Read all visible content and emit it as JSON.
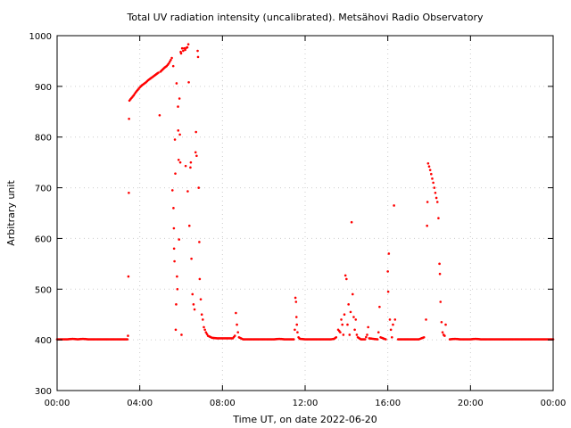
{
  "chart_data": {
    "type": "scatter",
    "title": "Total UV radiation intensity (uncalibrated). Metsähovi Radio Observatory",
    "xlabel": "Time UT, on date 2022-06-20",
    "ylabel": "Arbitrary unit",
    "xlim": [
      0,
      24
    ],
    "ylim": [
      300,
      1000
    ],
    "x_ticks": [
      {
        "value": 0,
        "label": "00:00"
      },
      {
        "value": 4,
        "label": "04:00"
      },
      {
        "value": 8,
        "label": "08:00"
      },
      {
        "value": 12,
        "label": "12:00"
      },
      {
        "value": 16,
        "label": "16:00"
      },
      {
        "value": 20,
        "label": "20:00"
      },
      {
        "value": 24,
        "label": "00:00"
      }
    ],
    "y_ticks": [
      300,
      400,
      500,
      600,
      700,
      800,
      900,
      1000
    ],
    "grid": true,
    "legend": "none",
    "color": "#ff0000",
    "series": [
      {
        "points": [
          [
            0.0,
            401
          ],
          [
            0.25,
            401
          ],
          [
            0.5,
            401
          ],
          [
            0.75,
            402
          ],
          [
            1.0,
            401
          ],
          [
            1.25,
            402
          ],
          [
            1.5,
            401
          ],
          [
            1.75,
            401
          ],
          [
            2.0,
            401
          ],
          [
            2.25,
            401
          ],
          [
            2.5,
            401
          ],
          [
            2.75,
            401
          ],
          [
            3.0,
            401
          ],
          [
            3.25,
            401
          ],
          [
            3.4,
            401
          ],
          [
            3.43,
            408
          ],
          [
            3.45,
            525
          ],
          [
            3.47,
            690
          ],
          [
            3.48,
            836
          ],
          [
            3.5,
            872
          ],
          [
            3.6,
            877
          ],
          [
            3.7,
            882
          ],
          [
            3.8,
            888
          ],
          [
            3.9,
            893
          ],
          [
            4.0,
            898
          ],
          [
            4.1,
            902
          ],
          [
            4.2,
            905
          ],
          [
            4.3,
            908
          ],
          [
            4.4,
            912
          ],
          [
            4.5,
            915
          ],
          [
            4.6,
            918
          ],
          [
            4.7,
            921
          ],
          [
            4.8,
            924
          ],
          [
            4.9,
            927
          ],
          [
            4.96,
            843
          ],
          [
            5.0,
            929
          ],
          [
            5.1,
            933
          ],
          [
            5.2,
            937
          ],
          [
            5.3,
            940
          ],
          [
            5.4,
            945
          ],
          [
            5.5,
            952
          ],
          [
            5.55,
            956
          ],
          [
            5.58,
            695
          ],
          [
            5.62,
            940
          ],
          [
            5.63,
            660
          ],
          [
            5.65,
            620
          ],
          [
            5.66,
            580
          ],
          [
            5.68,
            555
          ],
          [
            5.7,
            795
          ],
          [
            5.72,
            728
          ],
          [
            5.74,
            420
          ],
          [
            5.76,
            470
          ],
          [
            5.78,
            906
          ],
          [
            5.8,
            525
          ],
          [
            5.82,
            500
          ],
          [
            5.85,
            860
          ],
          [
            5.86,
            813
          ],
          [
            5.88,
            755
          ],
          [
            5.9,
            598
          ],
          [
            5.92,
            876
          ],
          [
            5.94,
            805
          ],
          [
            5.96,
            750
          ],
          [
            5.98,
            968
          ],
          [
            6.0,
            965
          ],
          [
            6.02,
            410
          ],
          [
            6.05,
            975
          ],
          [
            6.1,
            970
          ],
          [
            6.15,
            975
          ],
          [
            6.2,
            972
          ],
          [
            6.22,
            743
          ],
          [
            6.25,
            976
          ],
          [
            6.3,
            977
          ],
          [
            6.32,
            693
          ],
          [
            6.35,
            983
          ],
          [
            6.37,
            908
          ],
          [
            6.4,
            625
          ],
          [
            6.45,
            740
          ],
          [
            6.47,
            750
          ],
          [
            6.5,
            560
          ],
          [
            6.55,
            490
          ],
          [
            6.6,
            470
          ],
          [
            6.65,
            460
          ],
          [
            6.7,
            770
          ],
          [
            6.72,
            810
          ],
          [
            6.75,
            763
          ],
          [
            6.8,
            970
          ],
          [
            6.82,
            958
          ],
          [
            6.85,
            700
          ],
          [
            6.88,
            593
          ],
          [
            6.9,
            520
          ],
          [
            6.95,
            480
          ],
          [
            7.0,
            450
          ],
          [
            7.05,
            440
          ],
          [
            7.1,
            425
          ],
          [
            7.2,
            415
          ],
          [
            7.3,
            408
          ],
          [
            7.5,
            404
          ],
          [
            7.75,
            403
          ],
          [
            8.0,
            403
          ],
          [
            8.25,
            403
          ],
          [
            8.5,
            403
          ],
          [
            8.6,
            408
          ],
          [
            8.65,
            453
          ],
          [
            8.7,
            430
          ],
          [
            8.75,
            415
          ],
          [
            8.8,
            405
          ],
          [
            9.0,
            401
          ],
          [
            9.25,
            401
          ],
          [
            9.5,
            401
          ],
          [
            9.75,
            401
          ],
          [
            10.0,
            401
          ],
          [
            10.25,
            401
          ],
          [
            10.5,
            401
          ],
          [
            10.75,
            402
          ],
          [
            11.0,
            401
          ],
          [
            11.25,
            401
          ],
          [
            11.45,
            401
          ],
          [
            11.5,
            420
          ],
          [
            11.53,
            483
          ],
          [
            11.56,
            475
          ],
          [
            11.58,
            445
          ],
          [
            11.6,
            430
          ],
          [
            11.63,
            415
          ],
          [
            11.68,
            405
          ],
          [
            11.75,
            402
          ],
          [
            12.0,
            401
          ],
          [
            12.25,
            401
          ],
          [
            12.5,
            401
          ],
          [
            12.75,
            401
          ],
          [
            13.0,
            401
          ],
          [
            13.25,
            401
          ],
          [
            13.4,
            402
          ],
          [
            13.5,
            405
          ],
          [
            13.6,
            420
          ],
          [
            13.7,
            415
          ],
          [
            13.75,
            440
          ],
          [
            13.8,
            430
          ],
          [
            13.85,
            410
          ],
          [
            13.9,
            450
          ],
          [
            13.95,
            527
          ],
          [
            14.0,
            520
          ],
          [
            14.05,
            430
          ],
          [
            14.1,
            470
          ],
          [
            14.15,
            410
          ],
          [
            14.2,
            455
          ],
          [
            14.25,
            632
          ],
          [
            14.3,
            490
          ],
          [
            14.35,
            445
          ],
          [
            14.4,
            420
          ],
          [
            14.45,
            440
          ],
          [
            14.5,
            410
          ],
          [
            14.55,
            405
          ],
          [
            14.7,
            401
          ],
          [
            14.9,
            401
          ],
          [
            15.0,
            410
          ],
          [
            15.05,
            425
          ],
          [
            15.1,
            403
          ],
          [
            15.5,
            401
          ],
          [
            15.55,
            415
          ],
          [
            15.6,
            465
          ],
          [
            15.65,
            405
          ],
          [
            15.9,
            401
          ],
          [
            16.0,
            535
          ],
          [
            16.02,
            495
          ],
          [
            16.05,
            570
          ],
          [
            16.1,
            440
          ],
          [
            16.15,
            420
          ],
          [
            16.2,
            405
          ],
          [
            16.25,
            430
          ],
          [
            16.3,
            665
          ],
          [
            16.35,
            440
          ],
          [
            16.5,
            401
          ],
          [
            17.0,
            401
          ],
          [
            17.5,
            401
          ],
          [
            17.75,
            405
          ],
          [
            17.85,
            440
          ],
          [
            17.9,
            625
          ],
          [
            17.92,
            672
          ],
          [
            17.95,
            748
          ],
          [
            18.0,
            742
          ],
          [
            18.05,
            735
          ],
          [
            18.1,
            727
          ],
          [
            18.15,
            718
          ],
          [
            18.2,
            710
          ],
          [
            18.25,
            700
          ],
          [
            18.3,
            690
          ],
          [
            18.35,
            680
          ],
          [
            18.4,
            672
          ],
          [
            18.45,
            640
          ],
          [
            18.5,
            550
          ],
          [
            18.52,
            530
          ],
          [
            18.55,
            475
          ],
          [
            18.6,
            435
          ],
          [
            18.65,
            415
          ],
          [
            18.7,
            410
          ],
          [
            18.75,
            408
          ],
          [
            18.8,
            430
          ],
          [
            19.0,
            401
          ],
          [
            19.25,
            402
          ],
          [
            19.5,
            401
          ],
          [
            19.75,
            401
          ],
          [
            20.0,
            401
          ],
          [
            20.25,
            402
          ],
          [
            20.5,
            401
          ],
          [
            20.75,
            401
          ],
          [
            21.0,
            401
          ],
          [
            21.25,
            401
          ],
          [
            21.5,
            401
          ],
          [
            21.75,
            401
          ],
          [
            22.0,
            401
          ],
          [
            22.25,
            401
          ],
          [
            22.5,
            401
          ],
          [
            22.75,
            401
          ],
          [
            23.0,
            401
          ],
          [
            23.25,
            401
          ],
          [
            23.5,
            401
          ],
          [
            23.75,
            401
          ],
          [
            24.0,
            401
          ]
        ]
      }
    ]
  }
}
